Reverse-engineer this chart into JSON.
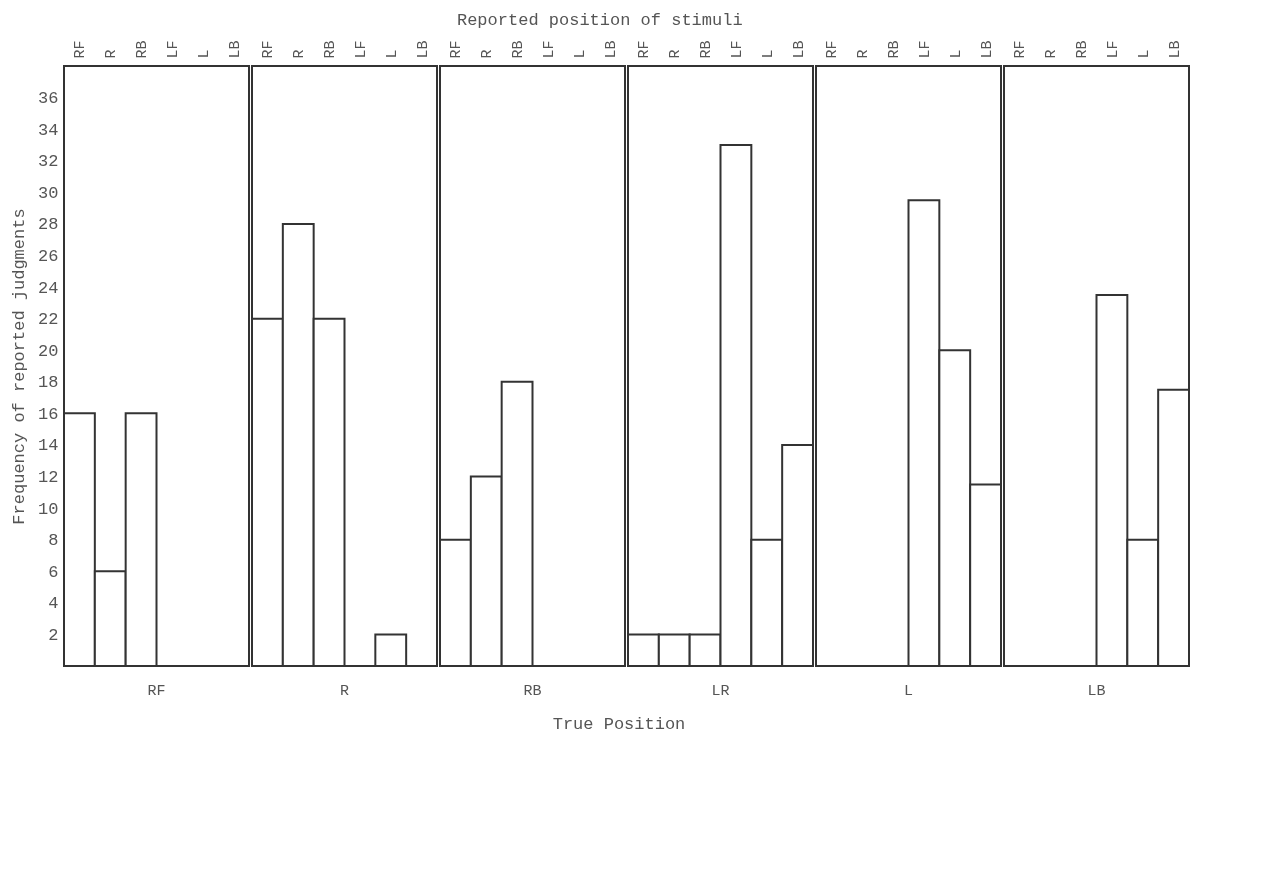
{
  "chart_data": [
    {
      "type": "bar",
      "ylabel": "Frequency of reported judgments",
      "annotations": [
        "Reported position of stimuli",
        "True Position"
      ],
      "xlabel": "RF",
      "categories": [
        "RF",
        "R",
        "RB",
        "LF",
        "L",
        "LB"
      ],
      "values": [
        16,
        6,
        16,
        0,
        0,
        0
      ],
      "color": "#ffffff",
      "ylim": [
        0,
        38
      ],
      "yticks": [
        2,
        4,
        6,
        8,
        10,
        12,
        14,
        16,
        18,
        20,
        22,
        24,
        26,
        28,
        30,
        32,
        34,
        36
      ]
    },
    {
      "type": "bar",
      "xlabel": "R",
      "categories": [
        "RF",
        "R",
        "RB",
        "LF",
        "L",
        "LB"
      ],
      "values": [
        22,
        28,
        22,
        0,
        2,
        0
      ],
      "color": "#ffffff",
      "ylim": [
        0,
        38
      ],
      "tick_labels": "x"
    },
    {
      "type": "bar",
      "xlabel": "RB",
      "categories": [
        "RF",
        "R",
        "RB",
        "LF",
        "L",
        "LB"
      ],
      "values": [
        8,
        12,
        18,
        0,
        0,
        0
      ],
      "color": "#ffffff",
      "ylim": [
        0,
        38
      ],
      "tick_labels": "x"
    },
    {
      "type": "bar",
      "xlabel": "LR",
      "categories": [
        "RF",
        "R",
        "RB",
        "LF",
        "L",
        "LB"
      ],
      "values": [
        2,
        2,
        2,
        33,
        8,
        14
      ],
      "color": "#ffffff",
      "ylim": [
        0,
        38
      ],
      "tick_labels": "x"
    },
    {
      "type": "bar",
      "xlabel": "L",
      "categories": [
        "RF",
        "R",
        "RB",
        "LF",
        "L",
        "LB"
      ],
      "values": [
        0,
        0,
        0,
        29.5,
        20,
        11.5
      ],
      "color": "#ffffff",
      "ylim": [
        0,
        38
      ],
      "tick_labels": "x"
    },
    {
      "type": "bar",
      "xlabel": "LB",
      "categories": [
        "RF",
        "R",
        "RB",
        "LF",
        "L",
        "LB"
      ],
      "values": [
        0,
        0,
        0,
        23.5,
        8,
        17.5
      ],
      "color": "#ffffff",
      "ylim": [
        0,
        38
      ],
      "tick_labels": "x"
    }
  ]
}
